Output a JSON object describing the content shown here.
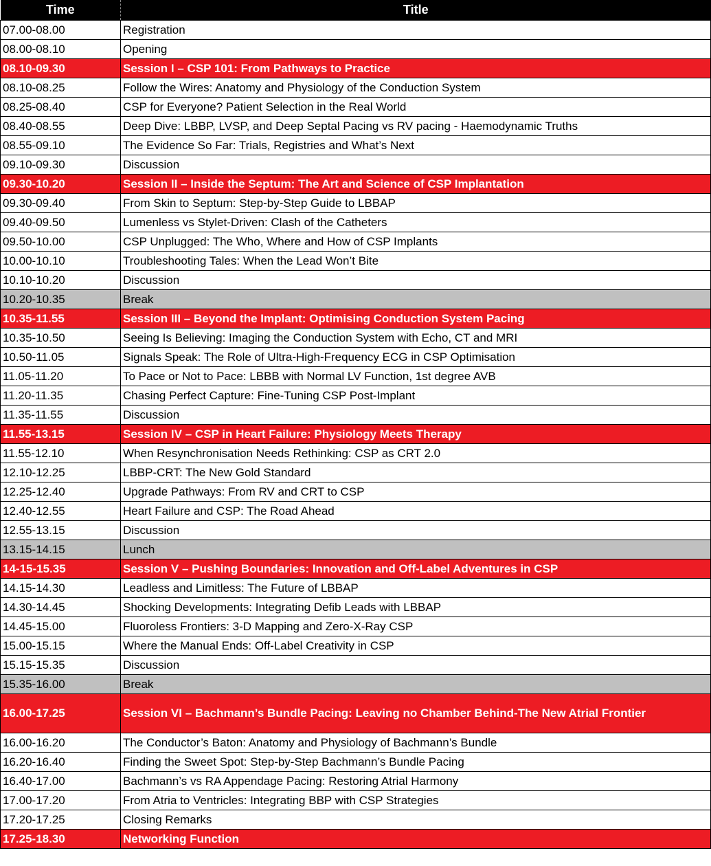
{
  "header": {
    "time": "Time",
    "title": "Title"
  },
  "colors": {
    "session": "#ed1c24",
    "break": "#c0c0c0",
    "header": "#000000"
  },
  "rows": [
    {
      "time": "07.00-08.00",
      "title": "Registration",
      "type": "normal"
    },
    {
      "time": "08.00-08.10",
      "title": "Opening",
      "type": "normal"
    },
    {
      "time": "08.10-09.30",
      "title": "Session I – CSP 101: From Pathways to Practice",
      "type": "session"
    },
    {
      "time": "08.10-08.25",
      "title": "Follow the Wires: Anatomy and Physiology of the Conduction System",
      "type": "normal"
    },
    {
      "time": "08.25-08.40",
      "title": "CSP for Everyone? Patient Selection in the Real World",
      "type": "normal"
    },
    {
      "time": "08.40-08.55",
      "title": "Deep Dive: LBBP, LVSP, and Deep Septal Pacing vs RV pacing - Haemodynamic Truths",
      "type": "normal"
    },
    {
      "time": "08.55-09.10",
      "title": "The Evidence So Far: Trials, Registries and What’s Next",
      "type": "normal"
    },
    {
      "time": "09.10-09.30",
      "title": "Discussion",
      "type": "normal"
    },
    {
      "time": "09.30-10.20",
      "title": "Session II – Inside the Septum: The Art and Science of CSP Implantation",
      "type": "session"
    },
    {
      "time": "09.30-09.40",
      "title": "From Skin to Septum: Step-by-Step Guide to LBBAP",
      "type": "normal"
    },
    {
      "time": "09.40-09.50",
      "title": "Lumenless vs Stylet-Driven: Clash of the Catheters",
      "type": "normal"
    },
    {
      "time": "09.50-10.00",
      "title": "CSP Unplugged: The Who, Where and How of CSP Implants",
      "type": "normal"
    },
    {
      "time": "10.00-10.10",
      "title": "Troubleshooting Tales: When the Lead Won’t Bite",
      "type": "normal"
    },
    {
      "time": "10.10-10.20",
      "title": "Discussion",
      "type": "normal"
    },
    {
      "time": "10.20-10.35",
      "title": "Break",
      "type": "break"
    },
    {
      "time": "10.35-11.55",
      "title": "Session III – Beyond the Implant: Optimising Conduction System Pacing",
      "type": "session"
    },
    {
      "time": "10.35-10.50",
      "title": "Seeing Is Believing: Imaging the Conduction System with Echo, CT and MRI",
      "type": "normal"
    },
    {
      "time": "10.50-11.05",
      "title": "Signals Speak: The Role of Ultra-High-Frequency ECG in CSP Optimisation",
      "type": "normal"
    },
    {
      "time": "11.05-11.20",
      "title": "To Pace or Not to Pace: LBBB with Normal LV Function, 1st degree AVB",
      "type": "normal"
    },
    {
      "time": "11.20-11.35",
      "title": "Chasing Perfect Capture: Fine-Tuning CSP Post-Implant",
      "type": "normal"
    },
    {
      "time": "11.35-11.55",
      "title": "Discussion",
      "type": "normal"
    },
    {
      "time": "11.55-13.15",
      "title": "Session IV – CSP in Heart Failure: Physiology Meets Therapy",
      "type": "session"
    },
    {
      "time": "11.55-12.10",
      "title": "When Resynchronisation Needs Rethinking: CSP as CRT 2.0",
      "type": "normal"
    },
    {
      "time": "12.10-12.25",
      "title": "LBBP-CRT: The New Gold Standard",
      "type": "normal"
    },
    {
      "time": "12.25-12.40",
      "title": "Upgrade Pathways: From RV and CRT to CSP",
      "type": "normal"
    },
    {
      "time": "12.40-12.55",
      "title": "Heart Failure and CSP: The Road Ahead",
      "type": "normal"
    },
    {
      "time": "12.55-13.15",
      "title": "Discussion",
      "type": "normal"
    },
    {
      "time": "13.15-14.15",
      "title": "Lunch",
      "type": "break"
    },
    {
      "time": "14-15-15.35",
      "title": "Session V – Pushing Boundaries: Innovation and Off-Label Adventures in CSP",
      "type": "session"
    },
    {
      "time": "14.15-14.30",
      "title": "Leadless and Limitless: The Future of LBBAP",
      "type": "normal"
    },
    {
      "time": "14.30-14.45",
      "title": "Shocking Developments: Integrating Defib Leads with LBBAP",
      "type": "normal"
    },
    {
      "time": "14.45-15.00",
      "title": "Fluoroless Frontiers: 3-D Mapping and Zero-X-Ray CSP",
      "type": "normal"
    },
    {
      "time": "15.00-15.15",
      "title": "Where the Manual Ends: Off-Label Creativity in CSP",
      "type": "normal"
    },
    {
      "time": "15.15-15.35",
      "title": "Discussion",
      "type": "normal"
    },
    {
      "time": "15.35-16.00",
      "title": "Break",
      "type": "break"
    },
    {
      "time": "16.00-17.25",
      "title": "Session VI – Bachmann’s Bundle Pacing: Leaving no Chamber Behind-The New Atrial Frontier",
      "type": "session double"
    },
    {
      "time": "16.00-16.20",
      "title": "The Conductor’s Baton: Anatomy and Physiology of Bachmann’s Bundle",
      "type": "normal"
    },
    {
      "time": "16.20-16.40",
      "title": "Finding the Sweet Spot: Step-by-Step Bachmann’s Bundle Pacing",
      "type": "normal"
    },
    {
      "time": "16.40-17.00",
      "title": "Bachmann’s vs RA Appendage Pacing: Restoring Atrial Harmony",
      "type": "normal"
    },
    {
      "time": "17.00-17.20",
      "title": "From Atria to Ventricles: Integrating BBP with CSP Strategies",
      "type": "normal"
    },
    {
      "time": "17.20-17.25",
      "title": "Closing Remarks",
      "type": "normal"
    },
    {
      "time": "17.25-18.30",
      "title": "Networking Function",
      "type": "session"
    }
  ]
}
